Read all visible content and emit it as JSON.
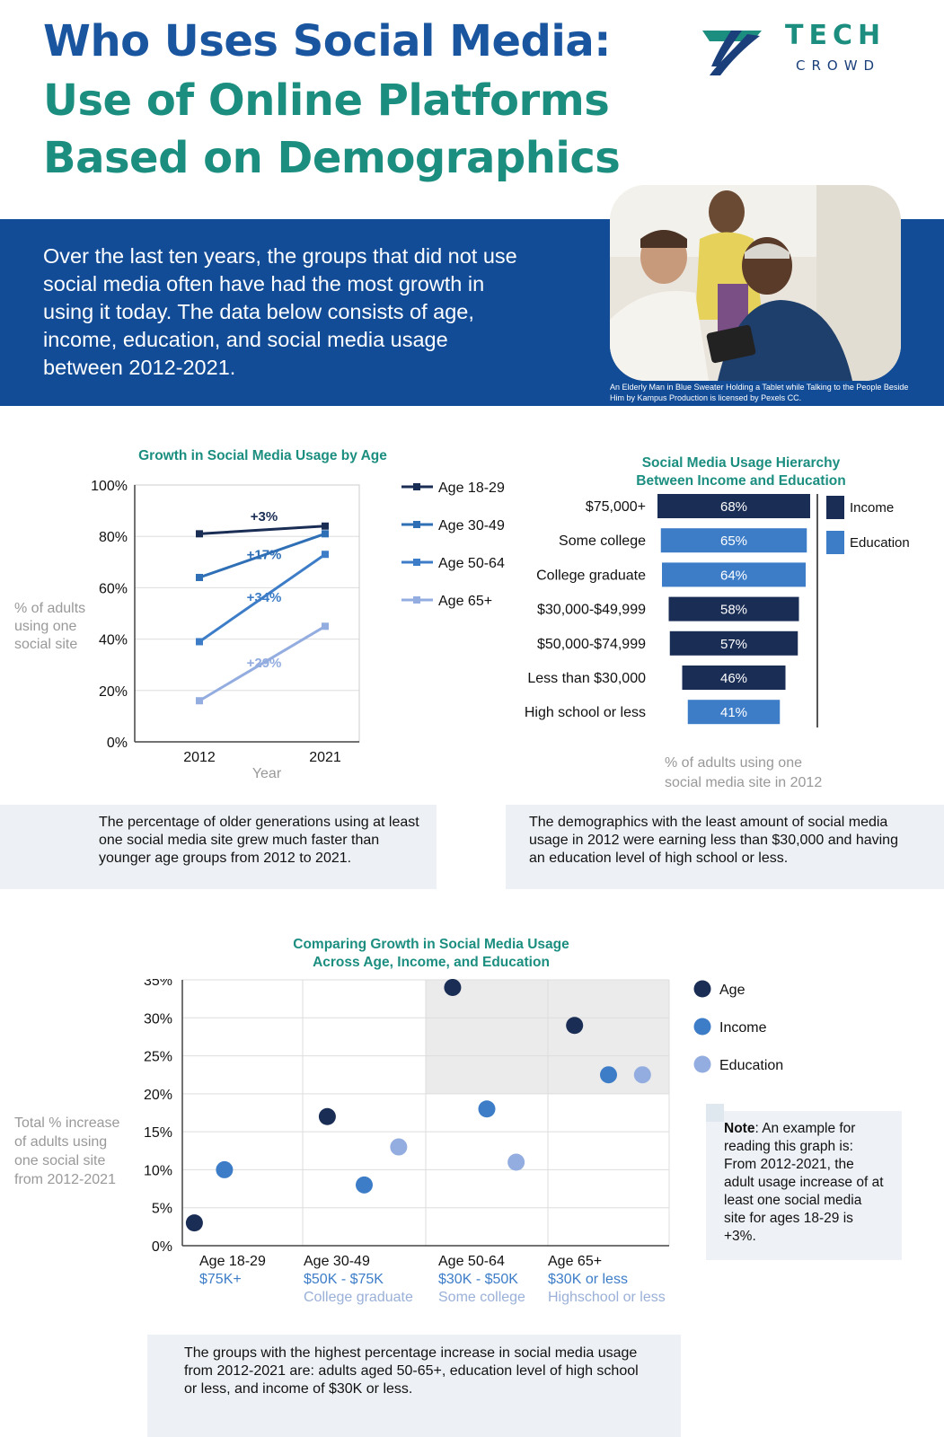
{
  "header": {
    "title_line1": "Who Uses Social Media:",
    "title_line2": "Use of Online Platforms",
    "title_line3": "Based on Demographics",
    "logo_tech": "TECH",
    "logo_crowd": "CROWD"
  },
  "intro": {
    "text": "Over the last ten years, the groups that did not use social media often have had the most growth in using it today. The data below consists of age, income, education, and social media usage between 2012-2021.",
    "photo_caption": "An Elderly Man in Blue Sweater Holding a Tablet while Talking to the People Beside Him by Kampus Production is licensed by Pexels CC."
  },
  "colors": {
    "navy": "#1a2d55",
    "blue": "#2e6fb5",
    "mid_blue": "#3d7dc8",
    "light_blue": "#93ade0",
    "teal": "#1b8e80",
    "banner": "#124c97"
  },
  "chart_data": [
    {
      "type": "line",
      "title": "Growth in Social Media Usage by Age",
      "xlabel": "Year",
      "ylabel": "% of adults using one social site",
      "x": [
        "2012",
        "2021"
      ],
      "ylim": [
        0,
        100
      ],
      "yticks": [
        "0%",
        "20%",
        "40%",
        "60%",
        "80%",
        "100%"
      ],
      "grid": true,
      "legend_position": "right",
      "series": [
        {
          "name": "Age 18-29",
          "values": [
            81,
            84
          ],
          "label": "+3%"
        },
        {
          "name": "Age 30-49",
          "values": [
            64,
            81
          ],
          "label": "+17%"
        },
        {
          "name": "Age 50-64",
          "values": [
            39,
            73
          ],
          "label": "+34%"
        },
        {
          "name": "Age 65+",
          "values": [
            16,
            45
          ],
          "label": "+29%"
        }
      ],
      "note": "The percentage of older generations using at least one social media site grew much faster than younger age groups from 2012 to 2021."
    },
    {
      "type": "bar",
      "title_line1": "Social Media Usage Hierarchy",
      "title_line2": "Between Income and Education",
      "xlabel_line1": "% of adults using one",
      "xlabel_line2": "social media site in 2012",
      "legend": [
        "Income",
        "Education"
      ],
      "legend_position": "right",
      "categories": [
        "$75,000+",
        "Some college",
        "College graduate",
        "$30,000-$49,999",
        "$50,000-$74,999",
        "Less than $30,000",
        "High school or less"
      ],
      "values": [
        68,
        65,
        64,
        58,
        57,
        46,
        41
      ],
      "value_labels": [
        "68%",
        "65%",
        "64%",
        "58%",
        "57%",
        "46%",
        "41%"
      ],
      "groups": [
        "Income",
        "Education",
        "Education",
        "Income",
        "Income",
        "Income",
        "Education"
      ],
      "note": "The demographics with the least amount of social media usage in 2012 were earning less than $30,000 and having an education level of high school or less."
    },
    {
      "type": "scatter",
      "title_line1": "Comparing Growth in Social Media Usage",
      "title_line2": "Across Age, Income, and Education",
      "ylabel": "Total % increase of adults using one social site from 2012-2021",
      "ylim": [
        0,
        35
      ],
      "yticks": [
        "0%",
        "5%",
        "10%",
        "15%",
        "20%",
        "25%",
        "30%",
        "35%"
      ],
      "legend_position": "right",
      "groups": [
        {
          "age": "Age 18-29",
          "income": "$75K+",
          "education": ""
        },
        {
          "age": "Age 30-49",
          "income": "$50K - $75K",
          "education": "College graduate"
        },
        {
          "age": "Age 50-64",
          "income": "$30K - $50K",
          "education": "Some college"
        },
        {
          "age": "Age 65+",
          "income": "$30K or less",
          "education": "Highschool or less"
        }
      ],
      "series": [
        {
          "name": "Age",
          "values": [
            3,
            17,
            34,
            29
          ]
        },
        {
          "name": "Income",
          "values": [
            10,
            8,
            18,
            22.5
          ]
        },
        {
          "name": "Education",
          "values": [
            null,
            13,
            11,
            22.5
          ]
        }
      ],
      "note_bold": "Note",
      "note_text": ": An example for reading this graph is: From 2012-2021, the adult usage increase of at least one social media site for ages 18-29 is +3%.",
      "summary": "The groups with the highest percentage increase in social media usage from 2012-2021 are: adults aged 50-65+, education level of high school or less, and income of $30K or less."
    }
  ]
}
